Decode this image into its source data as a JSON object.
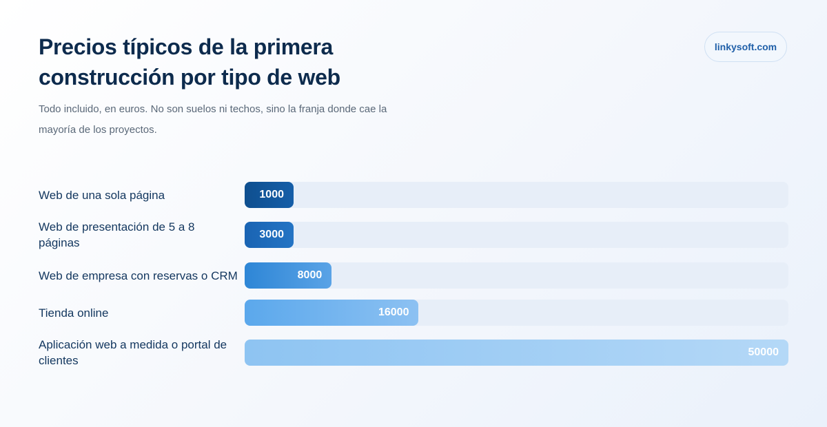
{
  "header": {
    "title": "Precios típicos de la primera construcción por tipo de web",
    "subtitle": "Todo incluido, en euros. No son suelos ni techos, sino la franja donde cae la mayoría de los proyectos.",
    "brand": "linkysoft.com"
  },
  "chart_data": {
    "type": "bar",
    "orientation": "horizontal",
    "title": "Precios típicos de la primera construcción por tipo de web",
    "subtitle": "Todo incluido, en euros. No son suelos ni techos, sino la franja donde cae la mayoría de los proyectos.",
    "categories": [
      "Web de una sola página",
      "Web de presentación de 5 a 8 páginas",
      "Web de empresa con reservas o CRM",
      "Tienda online",
      "Aplicación web a medida o portal de clientes"
    ],
    "values": [
      1000,
      3000,
      8000,
      16000,
      50000
    ],
    "value_labels": [
      "1000",
      "3000",
      "8000",
      "16000",
      "50000"
    ],
    "xlim": [
      0,
      50000
    ],
    "bar_colors": [
      [
        "#0f4f8f",
        "#155ea8"
      ],
      [
        "#1a64b3",
        "#2474c4"
      ],
      [
        "#2e86d6",
        "#5aa3e6"
      ],
      [
        "#5ba8ec",
        "#8cc1f2"
      ],
      [
        "#8ec4f2",
        "#b4d8f7"
      ]
    ],
    "track_color": "#e7eef8",
    "legend": "none",
    "grid": false
  }
}
